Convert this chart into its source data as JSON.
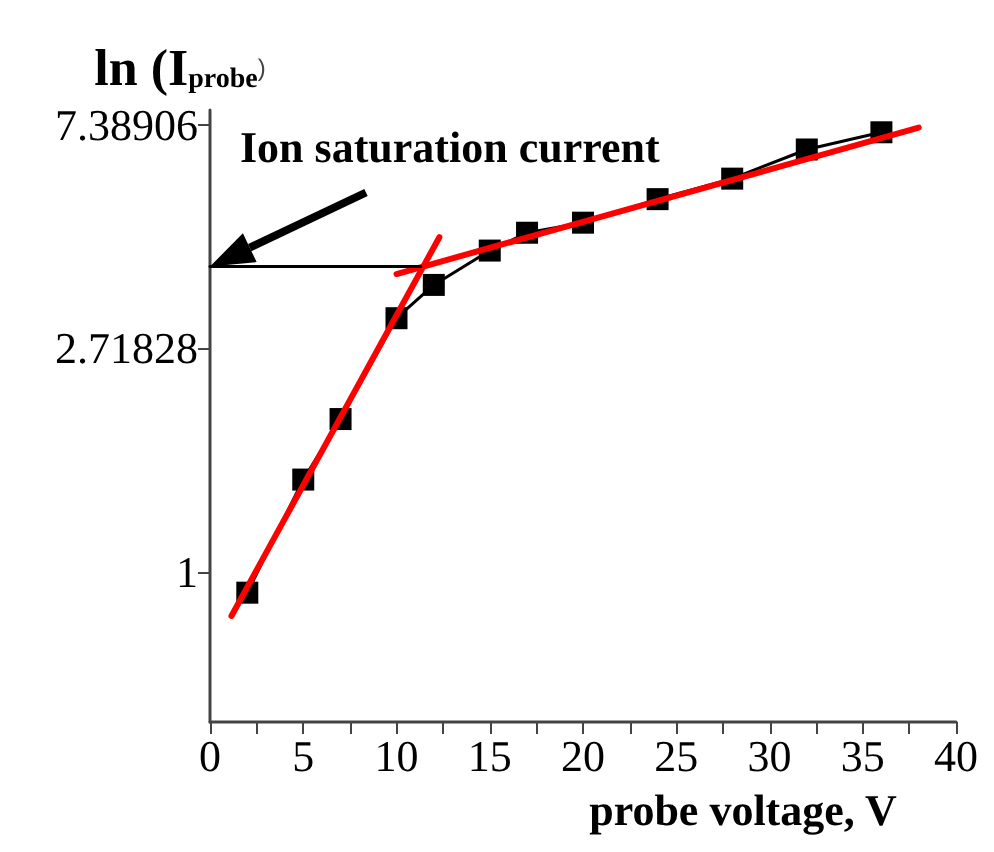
{
  "chart_data": {
    "type": "line",
    "ylabel": "ln (I$_{probe}$)",
    "xlabel": "probe voltage, V",
    "log": "y",
    "xlim": [
      0,
      40
    ],
    "xticks": [
      0,
      {
        "value": 2.5,
        "label": null
      },
      5,
      {
        "value": 7.5,
        "label": null
      },
      10,
      {
        "value": 12.5,
        "label": null
      },
      15,
      {
        "value": 17.5,
        "label": null
      },
      20,
      {
        "value": 22.5,
        "label": null
      },
      25,
      {
        "value": 27.5,
        "label": null
      },
      30,
      {
        "value": 32.5,
        "label": null
      },
      35,
      {
        "value": 37.5,
        "label": null
      },
      40
    ],
    "ylim": [
      0.51,
      7.9
    ],
    "yticks": [
      1,
      2.71828,
      7.38906
    ],
    "grid": false,
    "annotations": [
      {
        "text": "Ion saturation current",
        "x": 0,
        "y": 3.92
      }
    ],
    "series": [
      {
        "x": [
          2,
          5,
          7,
          10,
          12,
          15,
          17,
          20,
          24,
          28,
          32,
          36
        ],
        "values": [
          0.91,
          1.51,
          1.98,
          3.11,
          3.61,
          4.21,
          4.56,
          4.77,
          5.3,
          5.81,
          6.62,
          7.15
        ],
        "color": "#000000",
        "marker": "square",
        "line_style": "solid"
      },
      {
        "x": [
          1.15,
          12.3
        ],
        "values": [
          0.82,
          4.47
        ],
        "color": "#ff0000",
        "marker": "none",
        "line_style": "solid"
      },
      {
        "x": [
          10,
          38
        ],
        "values": [
          3.79,
          7.3
        ],
        "color": "#ff0000",
        "marker": "none",
        "line_style": "solid"
      },
      {
        "x": [
          0,
          11.3
        ],
        "values": [
          3.92,
          3.92
        ],
        "color": "#000000",
        "marker": "none",
        "line_style": "solid"
      }
    ]
  }
}
